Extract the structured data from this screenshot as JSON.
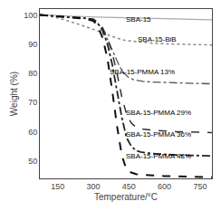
{
  "chart_data": {
    "type": "line",
    "xlabel": "Temperature/°C",
    "ylabel": "Weight (%)",
    "xlim": [
      75,
      800
    ],
    "ylim": [
      44,
      102
    ],
    "xticks": [
      150,
      300,
      450,
      600,
      750
    ],
    "yticks": [
      50,
      60,
      70,
      80,
      90,
      100
    ],
    "grid": false,
    "series": [
      {
        "color": "#aaaaaa",
        "line_style": "solid",
        "x": [
          75,
          100,
          150,
          200,
          250,
          300,
          350,
          400,
          450,
          500,
          550,
          600,
          650,
          700,
          750,
          800
        ],
        "values": [
          100.0,
          100.0,
          99.8,
          99.6,
          99.4,
          99.3,
          99.2,
          99.1,
          99.0,
          98.9,
          98.8,
          98.7,
          98.6,
          98.5,
          98.4,
          98.3
        ]
      },
      {
        "color": "#888888",
        "line_style": "dotted",
        "x": [
          75,
          100,
          150,
          200,
          250,
          300,
          350,
          380,
          400,
          420,
          440,
          460,
          480,
          500,
          550,
          600,
          650,
          700,
          750,
          800
        ],
        "values": [
          100.0,
          99.8,
          99.0,
          97.8,
          96.5,
          95.0,
          93.5,
          92.5,
          92.0,
          91.5,
          91.2,
          91.0,
          90.8,
          90.6,
          90.3,
          90.1,
          90.0,
          89.9,
          89.8,
          89.7
        ]
      },
      {
        "color": "#555555",
        "line_style": "dashdot",
        "x": [
          75,
          100,
          150,
          200,
          250,
          290,
          310,
          330,
          350,
          370,
          390,
          410,
          430,
          450,
          470,
          490,
          510,
          550,
          600,
          650,
          700,
          750,
          800
        ],
        "values": [
          100.0,
          99.8,
          99.5,
          99.2,
          99.0,
          98.5,
          97.5,
          96.0,
          93.5,
          90.0,
          86.0,
          82.5,
          80.0,
          78.5,
          77.8,
          77.4,
          77.2,
          77.0,
          76.8,
          76.7,
          76.6,
          76.5,
          76.4
        ]
      },
      {
        "color": "#333333",
        "line_style": "dashed",
        "x": [
          75,
          100,
          150,
          200,
          250,
          300,
          320,
          340,
          360,
          380,
          400,
          420,
          440,
          460,
          480,
          500,
          550,
          600,
          650,
          700,
          750,
          800
        ],
        "values": [
          100.0,
          99.8,
          99.5,
          99.2,
          99.0,
          98.5,
          97.5,
          95.5,
          92.0,
          87.0,
          80.0,
          72.0,
          66.0,
          63.0,
          61.5,
          61.0,
          60.5,
          60.2,
          60.0,
          59.9,
          59.8,
          59.7
        ]
      },
      {
        "color": "#222222",
        "line_style": "dashdot",
        "x": [
          75,
          100,
          150,
          200,
          250,
          300,
          320,
          340,
          360,
          380,
          400,
          420,
          440,
          460,
          480,
          500,
          550,
          600,
          650,
          700,
          750,
          800
        ],
        "values": [
          100.0,
          99.8,
          99.5,
          99.2,
          99.0,
          98.5,
          97.0,
          94.5,
          90.0,
          83.0,
          74.0,
          65.0,
          58.0,
          55.0,
          53.5,
          53.0,
          52.5,
          52.2,
          52.0,
          51.9,
          51.8,
          51.7
        ]
      },
      {
        "color": "#111111",
        "line_style": "dashed",
        "x": [
          75,
          100,
          150,
          200,
          250,
          300,
          320,
          340,
          360,
          380,
          400,
          420,
          440,
          460,
          480,
          500,
          550,
          600,
          650,
          700,
          750,
          800
        ],
        "values": [
          100.0,
          99.8,
          99.5,
          99.2,
          98.8,
          98.0,
          96.0,
          92.0,
          85.0,
          74.0,
          62.0,
          52.0,
          47.0,
          46.0,
          45.5,
          45.3,
          45.0,
          44.8,
          44.7,
          44.6,
          44.5,
          44.4
        ]
      }
    ],
    "annotations": [
      {
        "text": "SBA-15",
        "x": 430,
        "y": 98.5
      },
      {
        "text": "SBA-15-BiB",
        "x": 480,
        "y": 91.5
      },
      {
        "text": "SBA-15-PMMA 13%",
        "x": 360,
        "y": 80.5
      },
      {
        "text": "SBA-15-PMMA 29%",
        "x": 430,
        "y": 66.5
      },
      {
        "text": "SBA-15-PMMA 36%",
        "x": 430,
        "y": 59.0
      },
      {
        "text": "SBA-15-PMMA 48%",
        "x": 430,
        "y": 51.5
      }
    ]
  }
}
